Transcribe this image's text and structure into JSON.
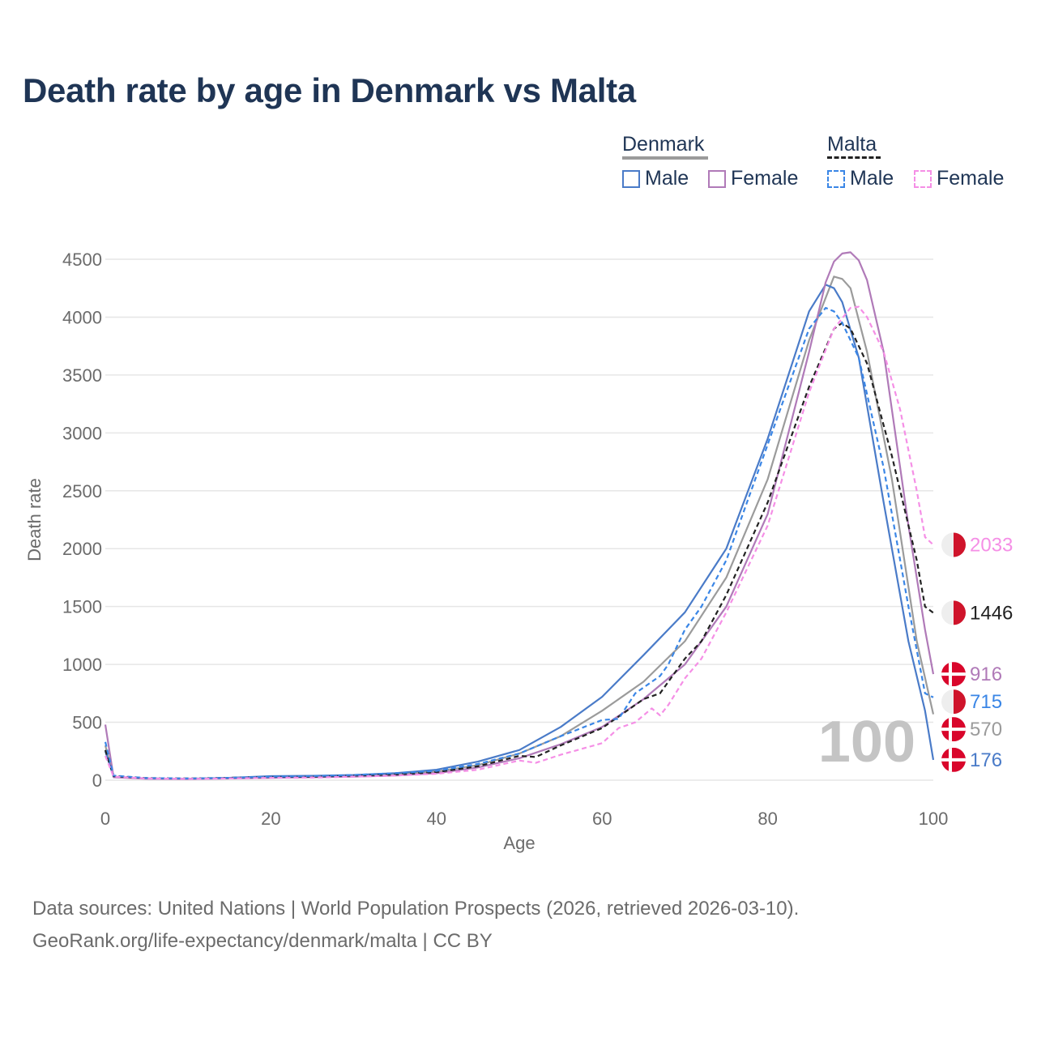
{
  "title": "Death rate by age in Denmark vs Malta",
  "legend": {
    "denmark": {
      "label": "Denmark",
      "male": "Male",
      "female": "Female"
    },
    "malta": {
      "label": "Malta",
      "male": "Male",
      "female": "Female"
    }
  },
  "sources": {
    "line1": "Data sources: United Nations | World Population Prospects (2026, retrieved 2026-03-10).",
    "line2": "GeoRank.org/life-expectancy/denmark/malta | CC BY"
  },
  "colors": {
    "dk_total": "#9b9b9b",
    "dk_male": "#4a7bc8",
    "dk_female": "#b07ab8",
    "mt_total": "#222222",
    "mt_male": "#3a86e6",
    "mt_female": "#f58fe6",
    "title": "#1f3555"
  },
  "chart_data": {
    "type": "line",
    "xlabel": "Age",
    "ylabel": "Death rate",
    "xlim": [
      0,
      100
    ],
    "ylim": [
      0,
      4500
    ],
    "xticks": [
      0,
      20,
      40,
      60,
      80,
      100
    ],
    "yticks": [
      0,
      500,
      1000,
      1500,
      2000,
      2500,
      3000,
      3500,
      4000,
      4500
    ],
    "year_watermark": "100",
    "series": [
      {
        "name": "Denmark",
        "key": "dk_total",
        "dash": false,
        "points": [
          [
            0,
            300
          ],
          [
            1,
            30
          ],
          [
            5,
            15
          ],
          [
            10,
            12
          ],
          [
            15,
            20
          ],
          [
            20,
            30
          ],
          [
            25,
            32
          ],
          [
            30,
            40
          ],
          [
            35,
            50
          ],
          [
            40,
            75
          ],
          [
            45,
            130
          ],
          [
            50,
            230
          ],
          [
            55,
            380
          ],
          [
            60,
            600
          ],
          [
            65,
            850
          ],
          [
            70,
            1200
          ],
          [
            75,
            1750
          ],
          [
            80,
            2600
          ],
          [
            85,
            3800
          ],
          [
            88,
            4350
          ],
          [
            89,
            4330
          ],
          [
            90,
            4250
          ],
          [
            92,
            3700
          ],
          [
            95,
            2600
          ],
          [
            98,
            1200
          ],
          [
            100,
            570
          ]
        ],
        "end_label": "570",
        "flag": "denmark"
      },
      {
        "name": "Denmark Male",
        "key": "dk_male",
        "dash": false,
        "points": [
          [
            0,
            250
          ],
          [
            1,
            30
          ],
          [
            5,
            15
          ],
          [
            10,
            12
          ],
          [
            15,
            20
          ],
          [
            20,
            35
          ],
          [
            25,
            38
          ],
          [
            30,
            45
          ],
          [
            35,
            60
          ],
          [
            40,
            90
          ],
          [
            45,
            160
          ],
          [
            50,
            260
          ],
          [
            55,
            460
          ],
          [
            60,
            720
          ],
          [
            65,
            1080
          ],
          [
            70,
            1450
          ],
          [
            75,
            2000
          ],
          [
            80,
            2950
          ],
          [
            85,
            4050
          ],
          [
            87,
            4280
          ],
          [
            88,
            4250
          ],
          [
            89,
            4130
          ],
          [
            91,
            3650
          ],
          [
            94,
            2400
          ],
          [
            97,
            1200
          ],
          [
            99,
            600
          ],
          [
            100,
            176
          ]
        ],
        "end_label": "176",
        "flag": "denmark"
      },
      {
        "name": "Denmark Female",
        "key": "dk_female",
        "dash": false,
        "points": [
          [
            0,
            480
          ],
          [
            1,
            25
          ],
          [
            5,
            12
          ],
          [
            10,
            10
          ],
          [
            15,
            15
          ],
          [
            20,
            20
          ],
          [
            25,
            25
          ],
          [
            30,
            30
          ],
          [
            35,
            40
          ],
          [
            40,
            60
          ],
          [
            45,
            110
          ],
          [
            50,
            190
          ],
          [
            55,
            310
          ],
          [
            60,
            460
          ],
          [
            65,
            700
          ],
          [
            70,
            1000
          ],
          [
            75,
            1500
          ],
          [
            80,
            2300
          ],
          [
            85,
            3700
          ],
          [
            87,
            4300
          ],
          [
            88,
            4480
          ],
          [
            89,
            4550
          ],
          [
            90,
            4560
          ],
          [
            91,
            4490
          ],
          [
            92,
            4320
          ],
          [
            94,
            3700
          ],
          [
            97,
            2200
          ],
          [
            99,
            1300
          ],
          [
            100,
            916
          ]
        ],
        "end_label": "916",
        "flag": "denmark"
      },
      {
        "name": "Malta",
        "key": "mt_total",
        "dash": true,
        "points": [
          [
            0,
            260
          ],
          [
            1,
            35
          ],
          [
            5,
            18
          ],
          [
            10,
            15
          ],
          [
            15,
            20
          ],
          [
            20,
            28
          ],
          [
            25,
            30
          ],
          [
            30,
            40
          ],
          [
            35,
            50
          ],
          [
            40,
            70
          ],
          [
            45,
            120
          ],
          [
            50,
            210
          ],
          [
            52,
            200
          ],
          [
            55,
            300
          ],
          [
            60,
            450
          ],
          [
            65,
            700
          ],
          [
            67,
            750
          ],
          [
            70,
            1050
          ],
          [
            72,
            1200
          ],
          [
            75,
            1600
          ],
          [
            80,
            2400
          ],
          [
            85,
            3400
          ],
          [
            88,
            3900
          ],
          [
            89,
            3950
          ],
          [
            90,
            3900
          ],
          [
            92,
            3600
          ],
          [
            95,
            2800
          ],
          [
            98,
            1900
          ],
          [
            99,
            1500
          ],
          [
            100,
            1446
          ]
        ],
        "end_label": "1446",
        "flag": "malta"
      },
      {
        "name": "Malta Male",
        "key": "mt_male",
        "dash": true,
        "points": [
          [
            0,
            330
          ],
          [
            1,
            40
          ],
          [
            5,
            18
          ],
          [
            10,
            15
          ],
          [
            15,
            20
          ],
          [
            20,
            30
          ],
          [
            25,
            35
          ],
          [
            30,
            45
          ],
          [
            35,
            60
          ],
          [
            40,
            80
          ],
          [
            45,
            140
          ],
          [
            50,
            230
          ],
          [
            55,
            380
          ],
          [
            60,
            520
          ],
          [
            62,
            530
          ],
          [
            64,
            750
          ],
          [
            67,
            900
          ],
          [
            68,
            1000
          ],
          [
            70,
            1300
          ],
          [
            72,
            1500
          ],
          [
            75,
            1900
          ],
          [
            80,
            2900
          ],
          [
            85,
            3900
          ],
          [
            87,
            4080
          ],
          [
            88,
            4050
          ],
          [
            89,
            3950
          ],
          [
            91,
            3650
          ],
          [
            94,
            2700
          ],
          [
            97,
            1500
          ],
          [
            99,
            750
          ],
          [
            100,
            715
          ]
        ],
        "end_label": "715",
        "flag": "malta"
      },
      {
        "name": "Malta Female",
        "key": "mt_female",
        "dash": true,
        "points": [
          [
            0,
            210
          ],
          [
            1,
            30
          ],
          [
            5,
            15
          ],
          [
            10,
            12
          ],
          [
            15,
            15
          ],
          [
            20,
            20
          ],
          [
            25,
            22
          ],
          [
            30,
            30
          ],
          [
            35,
            40
          ],
          [
            40,
            55
          ],
          [
            45,
            90
          ],
          [
            50,
            170
          ],
          [
            52,
            150
          ],
          [
            55,
            220
          ],
          [
            60,
            320
          ],
          [
            62,
            450
          ],
          [
            64,
            500
          ],
          [
            66,
            620
          ],
          [
            67,
            560
          ],
          [
            68,
            650
          ],
          [
            70,
            880
          ],
          [
            72,
            1050
          ],
          [
            75,
            1450
          ],
          [
            80,
            2200
          ],
          [
            85,
            3350
          ],
          [
            88,
            3900
          ],
          [
            90,
            4080
          ],
          [
            91,
            4090
          ],
          [
            92,
            4000
          ],
          [
            94,
            3700
          ],
          [
            96,
            3200
          ],
          [
            98,
            2500
          ],
          [
            99,
            2100
          ],
          [
            100,
            2033
          ]
        ],
        "end_label": "2033",
        "flag": "malta"
      }
    ]
  }
}
